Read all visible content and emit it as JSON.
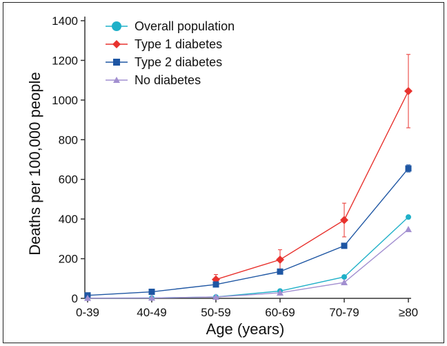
{
  "chart_data": {
    "type": "line",
    "title": "",
    "xlabel": "Age (years)",
    "ylabel": "Deaths per 100,000 people",
    "categories": [
      "0-39",
      "40-49",
      "50-59",
      "60-69",
      "70-79",
      "≥80"
    ],
    "ylim": [
      0,
      1400
    ],
    "yticks": [
      0,
      200,
      400,
      600,
      800,
      1000,
      1200,
      1400
    ],
    "grid": false,
    "legend_position": "top-left",
    "series": [
      {
        "name": "Overall population",
        "color": "#1fb0c8",
        "marker": "circle",
        "values": [
          1,
          2,
          7,
          37,
          108,
          410
        ],
        "error": [
          null,
          null,
          null,
          null,
          null,
          null
        ]
      },
      {
        "name": "Type 1 diabetes",
        "color": "#e8322e",
        "marker": "diamond",
        "values": [
          null,
          null,
          95,
          195,
          395,
          1045
        ],
        "error": [
          null,
          null,
          25,
          50,
          85,
          185
        ]
      },
      {
        "name": "Type 2 diabetes",
        "color": "#1e56a3",
        "marker": "square",
        "values": [
          15,
          33,
          70,
          135,
          265,
          655
        ],
        "error": [
          6,
          5,
          8,
          10,
          12,
          18
        ]
      },
      {
        "name": "No diabetes",
        "color": "#a28fd0",
        "marker": "triangle",
        "values": [
          1,
          2,
          7,
          28,
          80,
          348
        ],
        "error": [
          null,
          null,
          null,
          null,
          null,
          null
        ]
      }
    ]
  }
}
